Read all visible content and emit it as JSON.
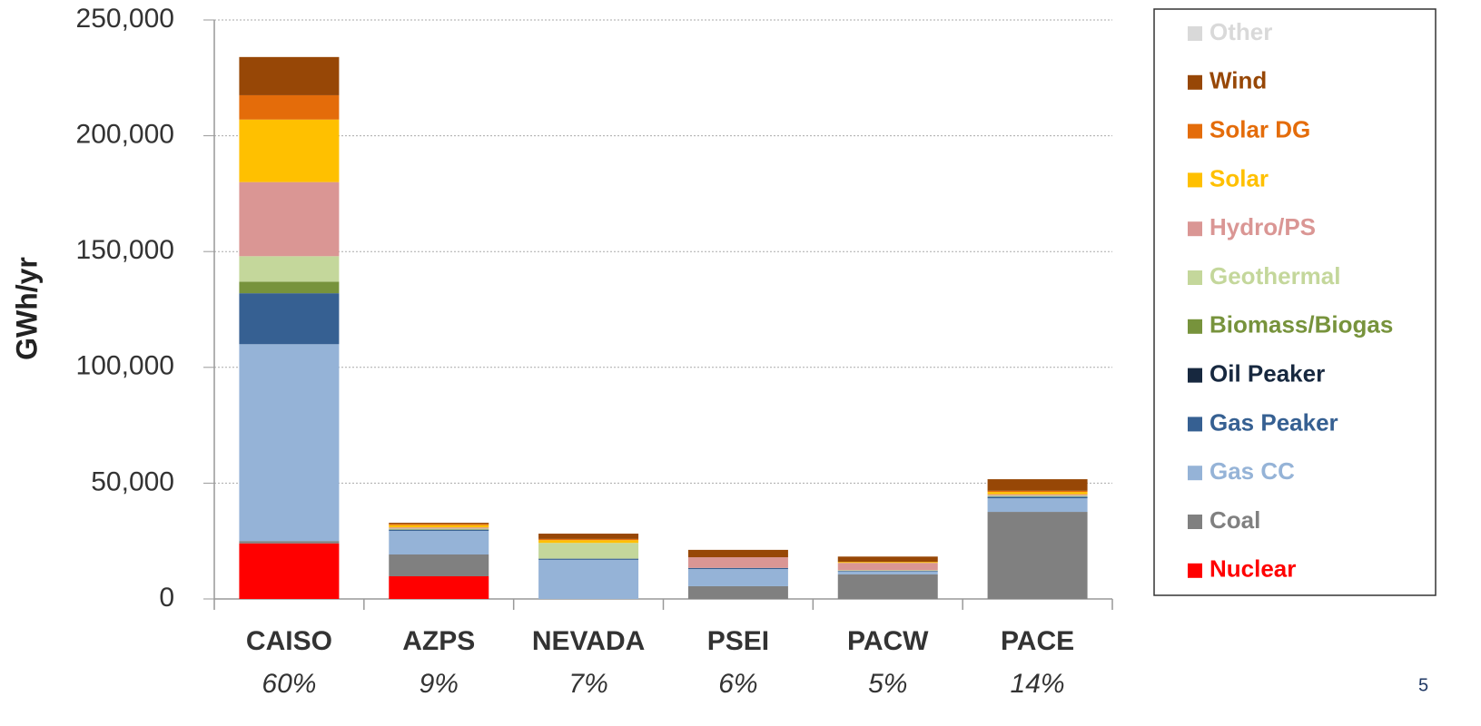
{
  "chart_data": {
    "type": "stacked_bar",
    "y_label": "GWh/yr",
    "categories": [
      "CAISO",
      "AZPS",
      "NEVADA",
      "PSEI",
      "PACW",
      "PACE"
    ],
    "category_shares": [
      "60%",
      "9%",
      "7%",
      "6%",
      "5%",
      "14%"
    ],
    "ylim": [
      0,
      250000
    ],
    "yticks": [
      0,
      {
        "value": 50000,
        "label": "50,000"
      },
      {
        "value": 100000,
        "label": "100,000"
      },
      {
        "value": 150000,
        "label": "150,000"
      },
      {
        "value": 200000,
        "label": "200,000"
      },
      {
        "value": 250000,
        "label": "250,000"
      }
    ],
    "grid": true,
    "legend": "right",
    "series": [
      {
        "name": "Nuclear",
        "color": "#ff0000",
        "values": [
          24000,
          9800,
          0,
          0,
          0,
          0
        ]
      },
      {
        "name": "Coal",
        "color": "#808080",
        "values": [
          1000,
          9400,
          0,
          5500,
          10600,
          37600
        ]
      },
      {
        "name": "Gas CC",
        "color": "#95b3d7",
        "values": [
          85000,
          10200,
          16900,
          7400,
          1200,
          5900
        ]
      },
      {
        "name": "Gas Peaker",
        "color": "#366092",
        "values": [
          22000,
          500,
          500,
          500,
          300,
          700
        ]
      },
      {
        "name": "Oil Peaker",
        "color": "#17283f",
        "values": [
          0,
          0,
          0,
          0,
          0,
          0
        ]
      },
      {
        "name": "Biomass/Biogas",
        "color": "#77933c",
        "values": [
          5000,
          200,
          0,
          0,
          0,
          0
        ]
      },
      {
        "name": "Geothermal",
        "color": "#c4d79b",
        "values": [
          11000,
          300,
          6800,
          0,
          300,
          500
        ]
      },
      {
        "name": "Hydro/PS",
        "color": "#da9694",
        "values": [
          32000,
          500,
          0,
          4600,
          3200,
          500
        ]
      },
      {
        "name": "Solar",
        "color": "#ffc000",
        "values": [
          27000,
          1000,
          1200,
          0,
          400,
          1000
        ]
      },
      {
        "name": "Solar DG",
        "color": "#e46c0a",
        "values": [
          10500,
          500,
          500,
          0,
          0,
          500
        ]
      },
      {
        "name": "Wind",
        "color": "#974706",
        "values": [
          16500,
          500,
          2300,
          3200,
          2300,
          5000
        ]
      },
      {
        "name": "Other",
        "color": "#d9d9d9",
        "values": [
          0,
          0,
          0,
          0,
          0,
          0
        ]
      }
    ]
  },
  "page_number": "5"
}
